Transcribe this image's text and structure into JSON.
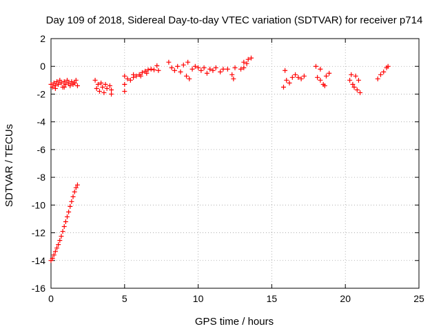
{
  "chart_data": {
    "type": "scatter",
    "title": "Day 109 of 2018, Sidereal Day-to-day VTEC variation (SDTVAR) for receiver p714",
    "xlabel": "GPS time / hours",
    "ylabel": "SDTVAR / TECUs",
    "xlim": [
      0,
      25
    ],
    "ylim": [
      -16,
      2
    ],
    "xticks": [
      0,
      5,
      10,
      15,
      20,
      25
    ],
    "yticks": [
      -16,
      -14,
      -12,
      -10,
      -8,
      -6,
      -4,
      -2,
      0,
      2
    ],
    "grid": true,
    "marker": "+",
    "color": "#ff0000",
    "series": [
      {
        "points": [
          [
            0.0,
            -14.0
          ],
          [
            0.1,
            -13.85
          ],
          [
            0.2,
            -13.6
          ],
          [
            0.3,
            -13.35
          ],
          [
            0.4,
            -13.1
          ],
          [
            0.5,
            -12.85
          ],
          [
            0.6,
            -12.55
          ],
          [
            0.7,
            -12.25
          ],
          [
            0.8,
            -11.9
          ],
          [
            0.9,
            -11.55
          ],
          [
            1.0,
            -11.2
          ],
          [
            1.1,
            -10.85
          ],
          [
            1.2,
            -10.5
          ],
          [
            1.3,
            -10.1
          ],
          [
            1.4,
            -9.75
          ],
          [
            1.5,
            -9.4
          ],
          [
            1.6,
            -9.05
          ],
          [
            1.7,
            -8.75
          ],
          [
            1.8,
            -8.55
          ],
          [
            0.0,
            -1.3
          ],
          [
            0.1,
            -1.5
          ],
          [
            0.2,
            -1.2
          ],
          [
            0.3,
            -1.4
          ],
          [
            0.4,
            -1.1
          ],
          [
            0.5,
            -1.3
          ],
          [
            0.6,
            -1.0
          ],
          [
            0.7,
            -1.2
          ],
          [
            0.8,
            -1.5
          ],
          [
            0.9,
            -1.1
          ],
          [
            1.0,
            -1.3
          ],
          [
            1.1,
            -1.0
          ],
          [
            1.2,
            -1.2
          ],
          [
            1.3,
            -1.4
          ],
          [
            1.4,
            -1.1
          ],
          [
            1.5,
            -1.3
          ],
          [
            1.6,
            -1.2
          ],
          [
            1.7,
            -1.0
          ],
          [
            1.8,
            -1.4
          ],
          [
            0.3,
            -1.6
          ],
          [
            0.9,
            -1.5
          ],
          [
            3.0,
            -1.0
          ],
          [
            3.1,
            -1.6
          ],
          [
            3.2,
            -1.3
          ],
          [
            3.3,
            -1.8
          ],
          [
            3.4,
            -1.2
          ],
          [
            3.5,
            -1.5
          ],
          [
            3.6,
            -1.9
          ],
          [
            3.7,
            -1.3
          ],
          [
            3.8,
            -1.6
          ],
          [
            4.0,
            -1.4
          ],
          [
            4.1,
            -2.0
          ],
          [
            4.1,
            -1.7
          ],
          [
            5.0,
            -1.8
          ],
          [
            5.0,
            -1.3
          ],
          [
            5.0,
            -0.7
          ],
          [
            5.2,
            -0.9
          ],
          [
            5.4,
            -1.0
          ],
          [
            5.6,
            -0.8
          ],
          [
            5.8,
            -0.7
          ],
          [
            6.0,
            -0.6
          ],
          [
            6.2,
            -0.45
          ],
          [
            6.4,
            -0.35
          ],
          [
            6.6,
            -0.25
          ],
          [
            6.8,
            -0.2
          ],
          [
            7.0,
            -0.25
          ],
          [
            5.6,
            -0.6
          ],
          [
            6.1,
            -0.7
          ],
          [
            6.5,
            -0.5
          ],
          [
            7.2,
            0.05
          ],
          [
            7.3,
            -0.3
          ],
          [
            8.0,
            0.3
          ],
          [
            8.2,
            -0.1
          ],
          [
            8.4,
            -0.3
          ],
          [
            8.6,
            0.0
          ],
          [
            8.8,
            -0.4
          ],
          [
            9.0,
            0.1
          ],
          [
            9.2,
            -0.7
          ],
          [
            9.3,
            0.3
          ],
          [
            9.4,
            -0.9
          ],
          [
            9.6,
            -0.2
          ],
          [
            9.8,
            0.0
          ],
          [
            10.0,
            -0.1
          ],
          [
            10.2,
            -0.3
          ],
          [
            10.4,
            -0.1
          ],
          [
            10.6,
            -0.5
          ],
          [
            10.8,
            -0.2
          ],
          [
            11.0,
            -0.3
          ],
          [
            11.2,
            -0.1
          ],
          [
            11.5,
            -0.4
          ],
          [
            11.7,
            -0.2
          ],
          [
            12.0,
            -0.2
          ],
          [
            12.3,
            -0.6
          ],
          [
            12.4,
            -0.9
          ],
          [
            12.5,
            -0.1
          ],
          [
            12.9,
            -0.2
          ],
          [
            13.1,
            -0.1
          ],
          [
            13.3,
            0.2
          ],
          [
            13.4,
            0.5
          ],
          [
            13.6,
            0.6
          ],
          [
            13.1,
            0.3
          ],
          [
            15.8,
            -1.5
          ],
          [
            15.9,
            -0.3
          ],
          [
            16.0,
            -1.0
          ],
          [
            16.2,
            -1.2
          ],
          [
            16.4,
            -0.8
          ],
          [
            16.6,
            -0.6
          ],
          [
            16.8,
            -0.8
          ],
          [
            17.0,
            -0.9
          ],
          [
            17.2,
            -0.7
          ],
          [
            18.0,
            0.0
          ],
          [
            18.1,
            -0.8
          ],
          [
            18.3,
            -1.0
          ],
          [
            18.5,
            -1.3
          ],
          [
            18.7,
            -0.7
          ],
          [
            18.9,
            -0.5
          ],
          [
            18.3,
            -0.2
          ],
          [
            18.6,
            -1.4
          ],
          [
            20.3,
            -1.0
          ],
          [
            20.4,
            -0.6
          ],
          [
            20.5,
            -1.3
          ],
          [
            20.6,
            -1.5
          ],
          [
            20.8,
            -1.7
          ],
          [
            21.0,
            -1.9
          ],
          [
            20.7,
            -0.7
          ],
          [
            20.9,
            -1.0
          ],
          [
            22.2,
            -0.9
          ],
          [
            22.4,
            -0.6
          ],
          [
            22.6,
            -0.4
          ],
          [
            22.8,
            -0.1
          ],
          [
            22.9,
            0.0
          ]
        ]
      }
    ]
  }
}
